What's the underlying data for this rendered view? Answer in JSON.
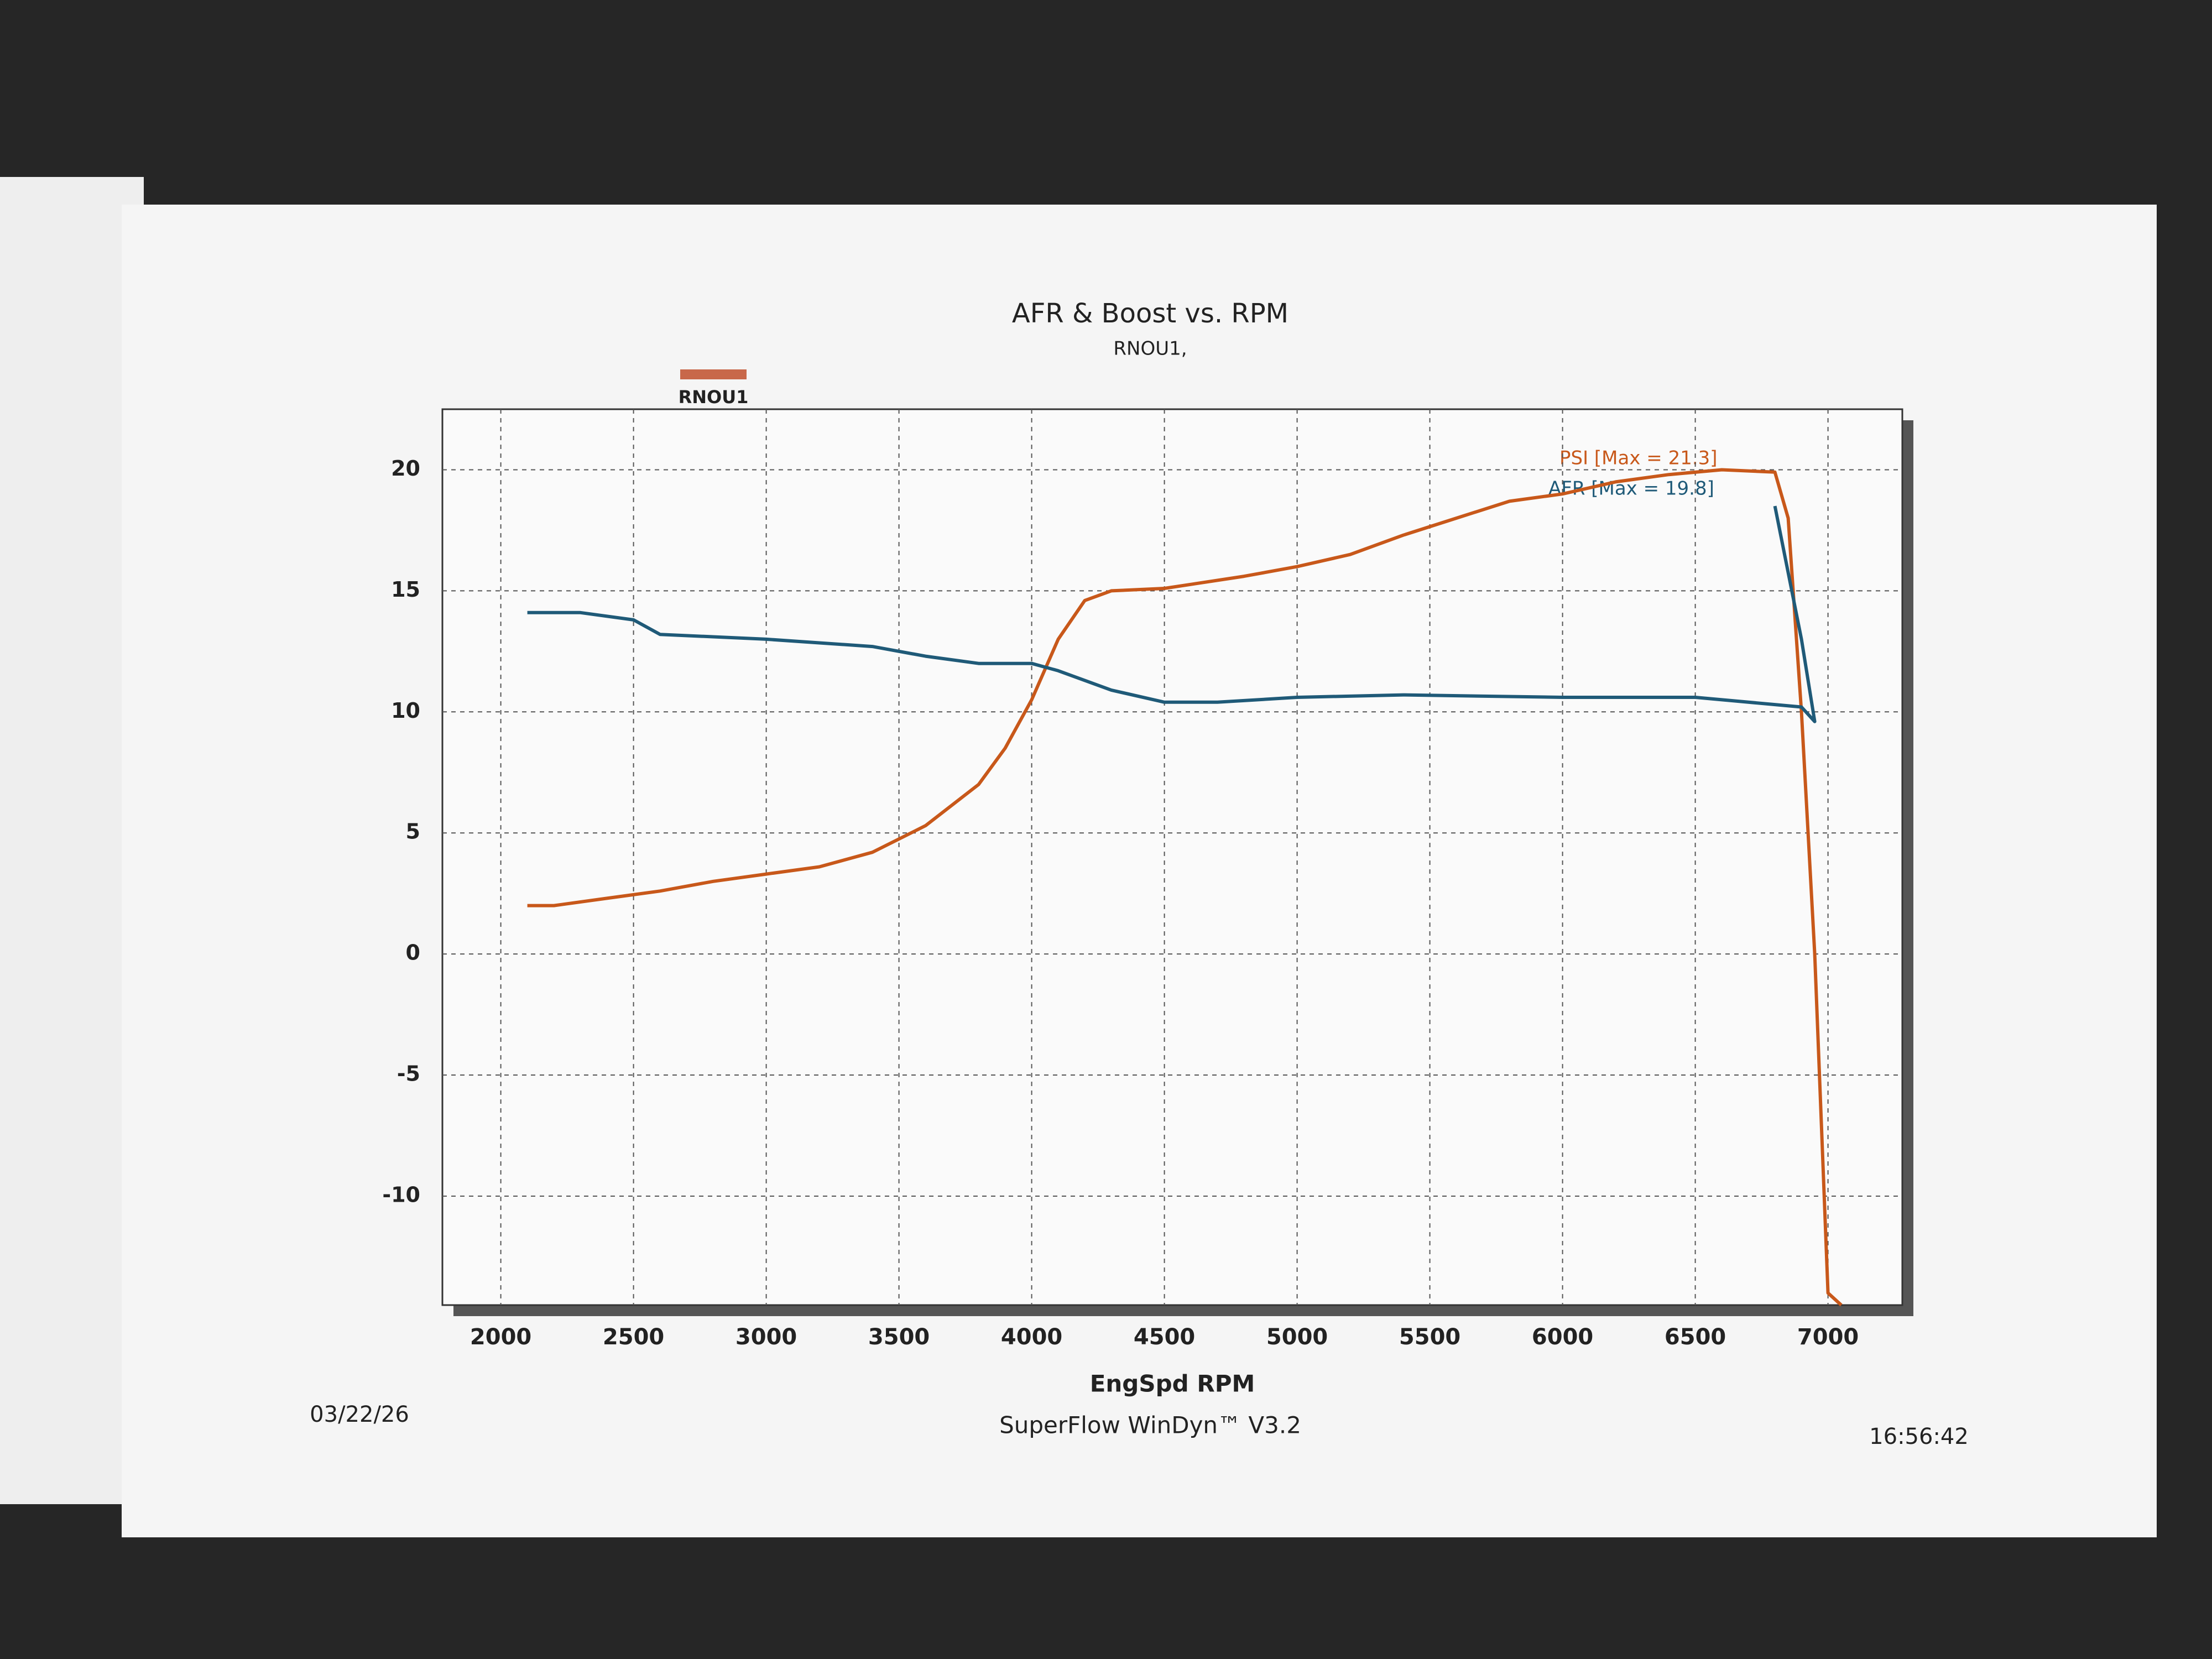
{
  "chart_data": {
    "type": "line",
    "title": "AFR & Boost vs. RPM",
    "subtitle": "RNOU1,",
    "legend": {
      "name": "RNOU1",
      "color": "#c8684a",
      "position": "top-left"
    },
    "xlabel": "EngSpd RPM",
    "xlim": [
      1780,
      7280
    ],
    "xticks": [
      2000,
      2500,
      3000,
      3500,
      4000,
      4500,
      5000,
      5500,
      6000,
      6500,
      7000
    ],
    "ylim": [
      -14.5,
      22.5
    ],
    "yticks": [
      -10,
      -5,
      0,
      5,
      10,
      15,
      20
    ],
    "grid": true,
    "series": [
      {
        "name": "PSI",
        "color": "#c8581a",
        "x": [
          2100,
          2200,
          2400,
          2600,
          2800,
          3000,
          3200,
          3400,
          3600,
          3800,
          3900,
          4000,
          4100,
          4200,
          4300,
          4500,
          4800,
          5000,
          5200,
          5400,
          5600,
          5800,
          6000,
          6200,
          6400,
          6600,
          6800,
          6850,
          6900,
          6950,
          7000,
          7050
        ],
        "values": [
          2.0,
          2.0,
          2.3,
          2.6,
          3.0,
          3.3,
          3.6,
          4.2,
          5.3,
          7.0,
          8.5,
          10.5,
          13.0,
          14.6,
          15.0,
          15.1,
          15.6,
          16.0,
          16.5,
          17.3,
          18.0,
          18.7,
          19.0,
          19.5,
          19.8,
          20.0,
          19.9,
          18.0,
          10.0,
          0.0,
          -14.0,
          -14.5
        ]
      },
      {
        "name": "AFR",
        "color": "#1f5a78",
        "x": [
          2100,
          2300,
          2500,
          2600,
          3000,
          3400,
          3600,
          3800,
          4000,
          4100,
          4300,
          4500,
          4700,
          5000,
          5400,
          6000,
          6500,
          6900,
          6950,
          6900,
          6800
        ],
        "values": [
          14.1,
          14.1,
          13.8,
          13.2,
          13.0,
          12.7,
          12.3,
          12.0,
          12.0,
          11.7,
          10.9,
          10.4,
          10.4,
          10.6,
          10.7,
          10.6,
          10.6,
          10.2,
          9.6,
          13.0,
          18.5
        ]
      }
    ],
    "annotations": [
      "PSI  [Max = 21.3]",
      "AFR  [Max = 19.8]"
    ],
    "footer": {
      "date": "03/22/26",
      "software": "SuperFlow WinDyn™ V3.2",
      "time": "16:56:42"
    }
  }
}
